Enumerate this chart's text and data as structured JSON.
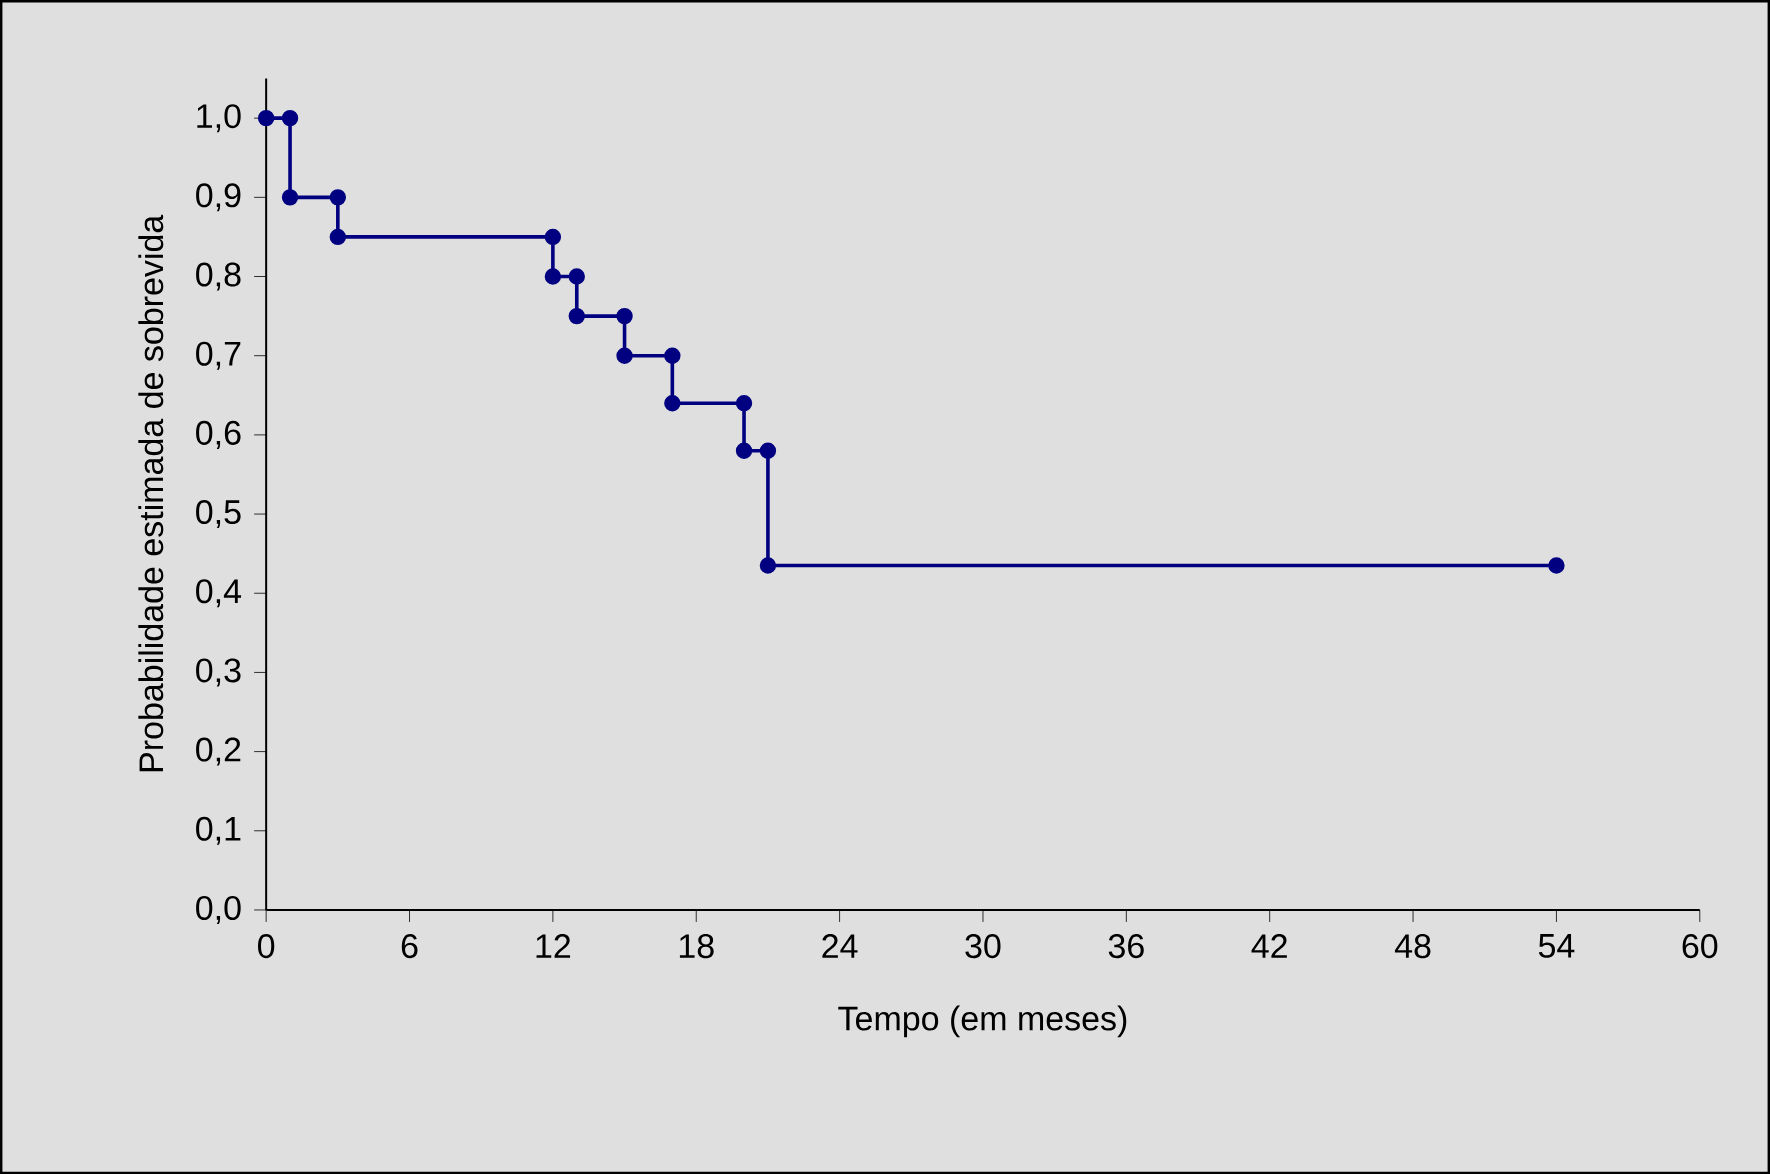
{
  "chart_data": {
    "type": "line",
    "xlabel": "Tempo (em meses)",
    "ylabel": "Probabilidade estimada de sobrevida",
    "x": [
      0,
      1,
      1,
      3,
      3,
      12,
      12,
      13,
      13,
      15,
      15,
      17,
      17,
      20,
      20,
      21,
      21,
      54
    ],
    "series": [
      {
        "color": "#000080",
        "values": [
          1.0,
          1.0,
          0.9,
          0.9,
          0.85,
          0.85,
          0.8,
          0.8,
          0.75,
          0.75,
          0.7,
          0.7,
          0.64,
          0.64,
          0.58,
          0.58,
          0.435,
          0.435
        ]
      }
    ],
    "xlim": [
      0,
      60
    ],
    "xticks": [
      0,
      6,
      12,
      18,
      24,
      30,
      36,
      42,
      48,
      54,
      60
    ],
    "ylim": [
      0,
      1.05
    ],
    "yticks": [
      {
        "value": 0,
        "label": "0,0"
      },
      {
        "value": 0.1,
        "label": "0,1"
      },
      {
        "value": 0.2,
        "label": "0,2"
      },
      {
        "value": 0.3,
        "label": "0,3"
      },
      {
        "value": 0.4,
        "label": "0,4"
      },
      {
        "value": 0.5,
        "label": "0,5"
      },
      {
        "value": 0.6,
        "label": "0,6"
      },
      {
        "value": 0.7,
        "label": "0,7"
      },
      {
        "value": 0.8,
        "label": "0,8"
      },
      {
        "value": 0.9,
        "label": "0,9"
      },
      {
        "value": 1.0,
        "label": "1,0"
      }
    ],
    "marker": "circle",
    "line_style": "solid"
  }
}
